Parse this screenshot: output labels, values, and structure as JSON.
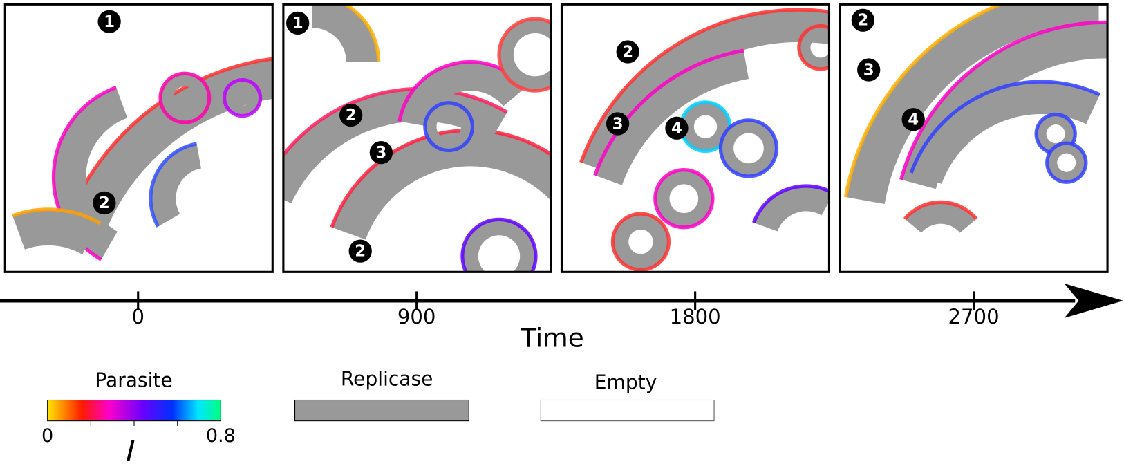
{
  "panels": [
    {
      "markers": [
        "1",
        "2"
      ]
    },
    {
      "markers": [
        "1",
        "2",
        "3",
        "2"
      ]
    },
    {
      "markers": [
        "2",
        "3",
        "4"
      ]
    },
    {
      "markers": [
        "2",
        "3",
        "4"
      ]
    }
  ],
  "timeline": {
    "label": "Time",
    "ticks": [
      0,
      900,
      1800,
      2700
    ],
    "lim": [
      0,
      2700
    ]
  },
  "legend": {
    "parasite": {
      "title": "Parasite",
      "min": 0,
      "max": 0.8
    },
    "replicase": {
      "title": "Replicase"
    },
    "empty": {
      "title": "Empty"
    }
  }
}
